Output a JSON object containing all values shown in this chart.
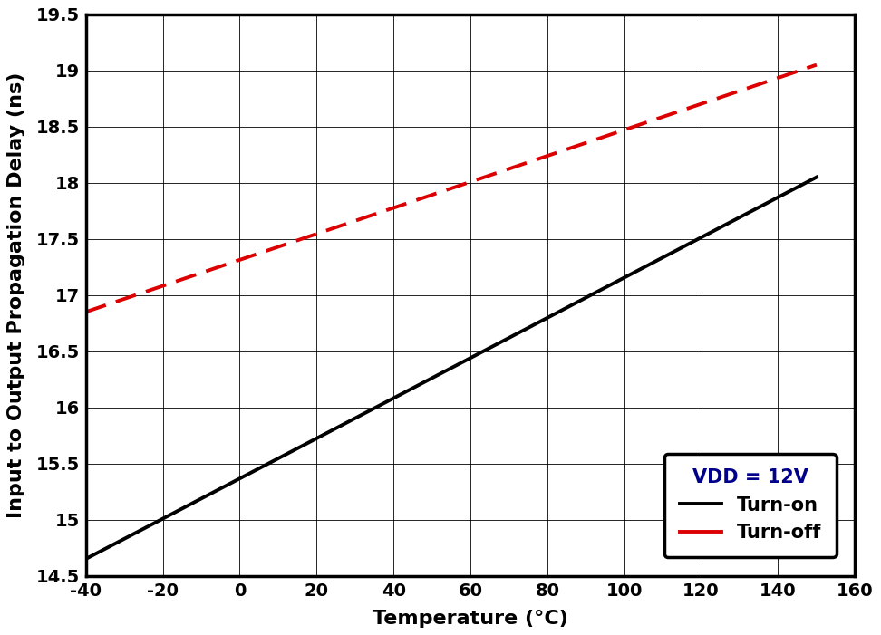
{
  "xlabel": "Temperature (°C)",
  "ylabel": "Input to Output Propagation Delay (ns)",
  "xlim": [
    -40,
    160
  ],
  "ylim": [
    14.5,
    19.5
  ],
  "xticks": [
    -40,
    -20,
    0,
    20,
    40,
    60,
    80,
    100,
    120,
    140,
    160
  ],
  "yticks": [
    14.5,
    15.0,
    15.5,
    16.0,
    16.5,
    17.0,
    17.5,
    18.0,
    18.5,
    19.0,
    19.5
  ],
  "turn_on": {
    "x": [
      -40,
      150
    ],
    "y": [
      14.65,
      18.05
    ],
    "color": "#000000",
    "linewidth": 2.8,
    "linestyle": "solid",
    "label": "Turn-on"
  },
  "turn_off": {
    "x": [
      -40,
      150
    ],
    "y": [
      16.85,
      19.05
    ],
    "color": "#dd0000",
    "linewidth": 2.8,
    "label": "Turn-off"
  },
  "legend_title": "VDD = 12V",
  "legend_title_color": "#00008b",
  "legend_fontsize": 15,
  "legend_title_fontsize": 15,
  "axis_label_fontsize": 16,
  "tick_fontsize": 14,
  "background_color": "#ffffff",
  "grid_color": "#000000",
  "grid_linewidth": 0.6,
  "spine_linewidth": 2.5
}
